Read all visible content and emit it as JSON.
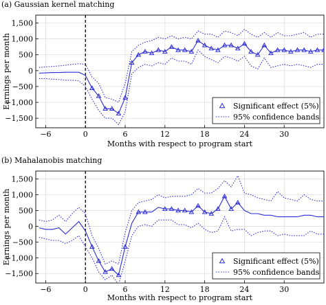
{
  "chart_data": [
    {
      "type": "line",
      "panel_label": "(a) Gaussian kernel matching",
      "xlabel": "Months with respect to program start",
      "ylabel": "Earnings per month",
      "xlim": [
        -7.5,
        36
      ],
      "ylim": [
        -1800,
        1750
      ],
      "xticks": [
        -6,
        0,
        6,
        12,
        18,
        24,
        30
      ],
      "yticks": [
        -1500,
        -1000,
        -500,
        0,
        500,
        1000,
        1500
      ],
      "xtick_labels": [
        "−6",
        "0",
        "6",
        "12",
        "18",
        "24",
        "30"
      ],
      "ytick_labels": [
        "−1,500",
        "−1,000",
        "−500",
        "0",
        "500",
        "1,000",
        "1,500"
      ],
      "program_start_x": 0,
      "grid": true,
      "legend_position": "bottom-right",
      "legend": [
        "Significant effect (5%)",
        "95% confidence bands"
      ],
      "x": [
        -7,
        -6,
        -5,
        -4,
        -3,
        -2,
        -1,
        0,
        1,
        2,
        3,
        4,
        5,
        6,
        7,
        8,
        9,
        10,
        11,
        12,
        13,
        14,
        15,
        16,
        17,
        18,
        19,
        20,
        21,
        22,
        23,
        24,
        25,
        26,
        27,
        28,
        29,
        30,
        31,
        32,
        33,
        34,
        35,
        36
      ],
      "estimate": [
        -80,
        -70,
        -60,
        -60,
        -50,
        -50,
        -50,
        -150,
        -550,
        -800,
        -1200,
        -1200,
        -1350,
        -850,
        250,
        500,
        600,
        550,
        650,
        600,
        750,
        650,
        650,
        600,
        950,
        800,
        700,
        650,
        800,
        800,
        700,
        850,
        600,
        500,
        800,
        550,
        650,
        650,
        600,
        650,
        650,
        600,
        650,
        650
      ],
      "significant": [
        false,
        false,
        false,
        false,
        false,
        false,
        false,
        false,
        true,
        true,
        true,
        true,
        true,
        true,
        true,
        true,
        true,
        true,
        true,
        true,
        true,
        true,
        true,
        true,
        true,
        true,
        true,
        true,
        true,
        true,
        true,
        true,
        true,
        true,
        true,
        true,
        true,
        true,
        true,
        true,
        true,
        true,
        true,
        true
      ],
      "upper": [
        100,
        120,
        130,
        150,
        170,
        200,
        220,
        200,
        -200,
        -400,
        -850,
        -900,
        -1000,
        -400,
        600,
        800,
        900,
        950,
        1050,
        1000,
        1100,
        1000,
        1050,
        1000,
        1250,
        1150,
        1150,
        1050,
        1250,
        1200,
        1100,
        1300,
        1150,
        1050,
        1200,
        1050,
        1200,
        1100,
        1100,
        1150,
        1200,
        1050,
        1150,
        1150
      ],
      "lower": [
        -250,
        -250,
        -270,
        -280,
        -300,
        -300,
        -320,
        -500,
        -900,
        -1250,
        -1500,
        -1500,
        -1700,
        -1300,
        -100,
        100,
        200,
        150,
        250,
        200,
        400,
        300,
        300,
        200,
        650,
        450,
        350,
        250,
        450,
        400,
        300,
        450,
        150,
        50,
        400,
        100,
        150,
        200,
        150,
        200,
        150,
        100,
        200,
        200
      ]
    },
    {
      "type": "line",
      "panel_label": "(b) Mahalanobis matching",
      "xlabel": "Months with respect to program start",
      "ylabel": "Earnings per month",
      "xlim": [
        -7.5,
        36
      ],
      "ylim": [
        -1800,
        1750
      ],
      "xticks": [
        -6,
        0,
        6,
        12,
        18,
        24,
        30
      ],
      "yticks": [
        -1500,
        -1000,
        -500,
        0,
        500,
        1000,
        1500
      ],
      "xtick_labels": [
        "−6",
        "0",
        "6",
        "12",
        "18",
        "24",
        "30"
      ],
      "ytick_labels": [
        "−1,500",
        "−1,000",
        "−500",
        "0",
        "500",
        "1,000",
        "1,500"
      ],
      "program_start_x": 0,
      "grid": true,
      "legend_position": "bottom-right",
      "legend": [
        "Significant effect (5%)",
        "95% confidence bands"
      ],
      "x": [
        -7,
        -6,
        -5,
        -4,
        -3,
        -2,
        -1,
        0,
        1,
        2,
        3,
        4,
        5,
        6,
        7,
        8,
        9,
        10,
        11,
        12,
        13,
        14,
        15,
        16,
        17,
        18,
        19,
        20,
        21,
        22,
        23,
        24,
        25,
        26,
        27,
        28,
        29,
        30,
        31,
        32,
        33,
        34,
        35,
        36
      ],
      "estimate": [
        -50,
        -100,
        -100,
        -50,
        -250,
        -50,
        150,
        -150,
        -650,
        -1100,
        -1450,
        -1350,
        -1550,
        -650,
        100,
        450,
        450,
        450,
        600,
        550,
        550,
        500,
        500,
        450,
        650,
        450,
        400,
        550,
        950,
        550,
        750,
        500,
        400,
        400,
        350,
        350,
        300,
        300,
        300,
        300,
        350,
        350,
        300,
        300
      ],
      "significant": [
        false,
        false,
        false,
        false,
        false,
        false,
        false,
        false,
        true,
        true,
        true,
        true,
        true,
        true,
        false,
        true,
        true,
        false,
        false,
        true,
        true,
        true,
        true,
        true,
        true,
        true,
        true,
        true,
        true,
        true,
        true,
        false,
        false,
        false,
        false,
        false,
        false,
        false,
        false,
        false,
        false,
        false,
        false,
        false
      ],
      "upper": [
        200,
        150,
        200,
        350,
        150,
        400,
        600,
        400,
        -300,
        -700,
        -1200,
        -1100,
        -1200,
        -200,
        500,
        750,
        800,
        850,
        1000,
        900,
        950,
        950,
        950,
        1000,
        1200,
        1050,
        1050,
        1200,
        1450,
        1250,
        1600,
        1050,
        1000,
        900,
        850,
        800,
        1100,
        900,
        850,
        800,
        1000,
        850,
        800,
        800
      ],
      "lower": [
        -350,
        -400,
        -450,
        -450,
        -550,
        -450,
        -300,
        -650,
        -1000,
        -1450,
        -1700,
        -1550,
        -1850,
        -1100,
        -300,
        0,
        50,
        0,
        200,
        200,
        200,
        50,
        50,
        -50,
        100,
        -100,
        -200,
        -150,
        300,
        -150,
        -100,
        -100,
        -300,
        -200,
        -150,
        -150,
        -300,
        -250,
        -300,
        -300,
        -300,
        -150,
        -250,
        -250
      ]
    }
  ]
}
